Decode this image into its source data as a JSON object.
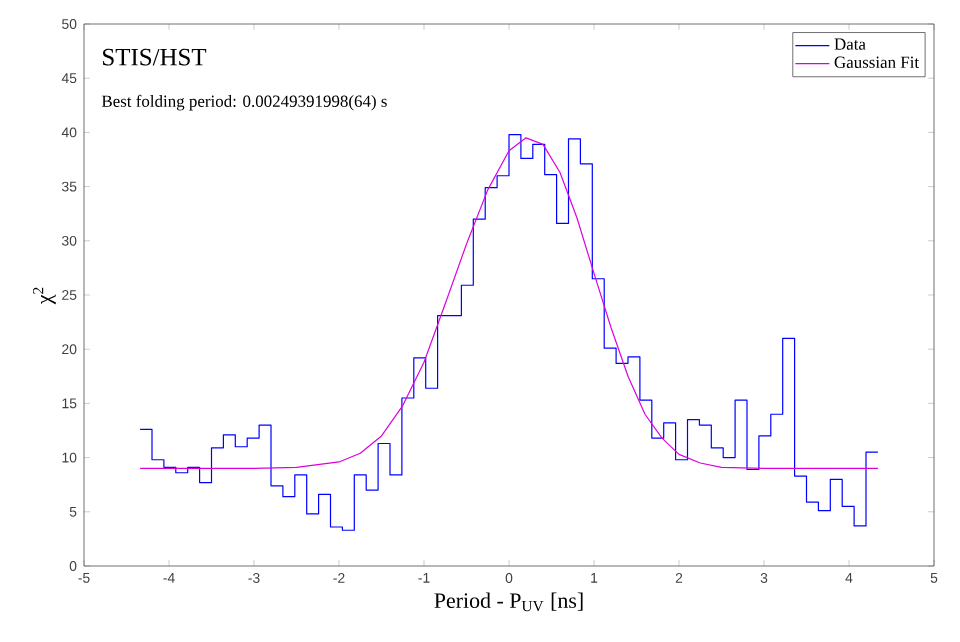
{
  "chart_data": {
    "type": "step",
    "title": "STIS/HST",
    "subtitle": "Best folding period: 0.00249391998(64) s",
    "xlabel": "Period - P$_{UV}$ [ns]",
    "ylabel": "χ$^{2}$",
    "xlim": [
      -5,
      5
    ],
    "ylim": [
      0,
      50
    ],
    "xticks": [
      -5,
      -4,
      -3,
      -2,
      -1,
      0,
      1,
      2,
      3,
      4,
      5
    ],
    "yticks": [
      0,
      5,
      10,
      15,
      20,
      25,
      30,
      35,
      40,
      45,
      50
    ],
    "legend": "top right",
    "grid": false,
    "series": [
      {
        "name": "Data",
        "color": "#0000ff",
        "x": [
          -4.34,
          -4.2,
          -4.06,
          -3.92,
          -3.78,
          -3.64,
          -3.5,
          -3.36,
          -3.22,
          -3.08,
          -2.94,
          -2.8,
          -2.66,
          -2.52,
          -2.38,
          -2.24,
          -2.1,
          -1.96,
          -1.82,
          -1.68,
          -1.54,
          -1.4,
          -1.26,
          -1.12,
          -0.98,
          -0.84,
          -0.7,
          -0.56,
          -0.42,
          -0.28,
          -0.14,
          0.0,
          0.14,
          0.28,
          0.42,
          0.56,
          0.7,
          0.84,
          0.98,
          1.12,
          1.26,
          1.4,
          1.54,
          1.68,
          1.82,
          1.96,
          2.1,
          2.24,
          2.38,
          2.52,
          2.66,
          2.8,
          2.94,
          3.08,
          3.22,
          3.36,
          3.5,
          3.64,
          3.78,
          3.92,
          4.06,
          4.2,
          4.34
        ],
        "values": [
          12.6,
          9.8,
          9.1,
          8.6,
          9.1,
          7.7,
          10.9,
          12.1,
          11.0,
          11.8,
          13.0,
          7.4,
          6.4,
          8.4,
          4.8,
          6.6,
          3.6,
          3.3,
          8.4,
          7.0,
          11.3,
          8.4,
          15.5,
          19.2,
          16.4,
          23.1,
          23.1,
          25.9,
          32.0,
          34.9,
          36.0,
          39.8,
          37.6,
          38.9,
          36.1,
          31.6,
          39.4,
          37.1,
          26.5,
          20.1,
          18.7,
          19.3,
          15.3,
          11.8,
          13.2,
          9.8,
          13.5,
          13.0,
          10.9,
          10.0,
          15.3,
          8.9,
          12.0,
          14.0,
          21.0,
          8.3,
          5.9,
          5.1,
          8.0,
          5.5,
          3.7,
          10.5,
          10.5
        ]
      },
      {
        "name": "Gaussian Fit",
        "type": "line",
        "color": "#dd00dd",
        "x": [
          -4.34,
          -3,
          -2.5,
          -2,
          -1.75,
          -1.5,
          -1.25,
          -1,
          -0.75,
          -0.5,
          -0.25,
          0,
          0.2,
          0.4,
          0.6,
          0.8,
          1.0,
          1.2,
          1.4,
          1.6,
          1.8,
          2.0,
          2.25,
          2.5,
          3,
          4.34
        ],
        "values": [
          9.0,
          9.0,
          9.1,
          9.6,
          10.4,
          12.0,
          14.8,
          18.8,
          24.2,
          29.7,
          34.7,
          38.3,
          39.5,
          38.9,
          36.3,
          32.1,
          27.0,
          22.0,
          17.5,
          14.0,
          11.8,
          10.3,
          9.5,
          9.1,
          9.0,
          9.0
        ]
      }
    ]
  }
}
